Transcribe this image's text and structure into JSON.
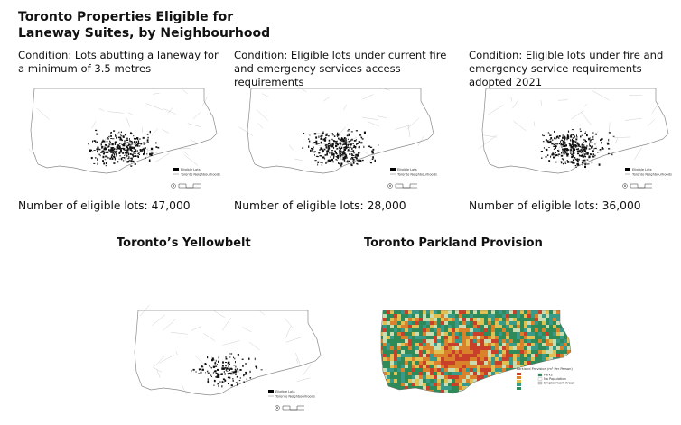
{
  "header": {
    "title_line1": "Toronto Properties Eligible for",
    "title_line2": "Laneway Suites, by Neighbourhood"
  },
  "panels": [
    {
      "condition": "Condition: Lots abutting a laneway for a minimum of 3.5 metres",
      "count_text": "Number of eligible lots: 47,000",
      "legend": [
        "Eligible Lots",
        "Toronto Neighbourhoods"
      ]
    },
    {
      "condition": "Condition: Eligible lots under current fire and emergency services access requirements",
      "count_text": "Number of eligible lots: 28,000",
      "legend": [
        "Eligible Lots",
        "Toronto Neighbourhoods"
      ]
    },
    {
      "condition": "Condition: Eligible lots under fire and emergency service requirements adopted 2021",
      "count_text": "Number of eligible lots: 36,000",
      "legend": [
        "Eligible Lots",
        "Toronto Neighbourhoods"
      ]
    }
  ],
  "yellowbelt": {
    "title": "Toronto’s Yellowbelt",
    "legend": [
      "Eligible Lots",
      "Toronto Neighbourhoods"
    ]
  },
  "parkland": {
    "title": "Toronto Parkland Provision",
    "legend_title": "Parkland Provision (m² Per Person)",
    "legend": [
      "Parks",
      "No Population",
      "Employment Areas"
    ]
  },
  "colors": {
    "dots": "#111111",
    "yellowbelt": "#f2e64a",
    "park_green": "#2f8a5a",
    "park_teal": "#3a9a8a",
    "park_orange": "#d9822b",
    "park_red": "#c8402a",
    "park_light": "#c9ddb0"
  },
  "icons": [
    "north-arrow-icon",
    "scale-bar-icon"
  ]
}
